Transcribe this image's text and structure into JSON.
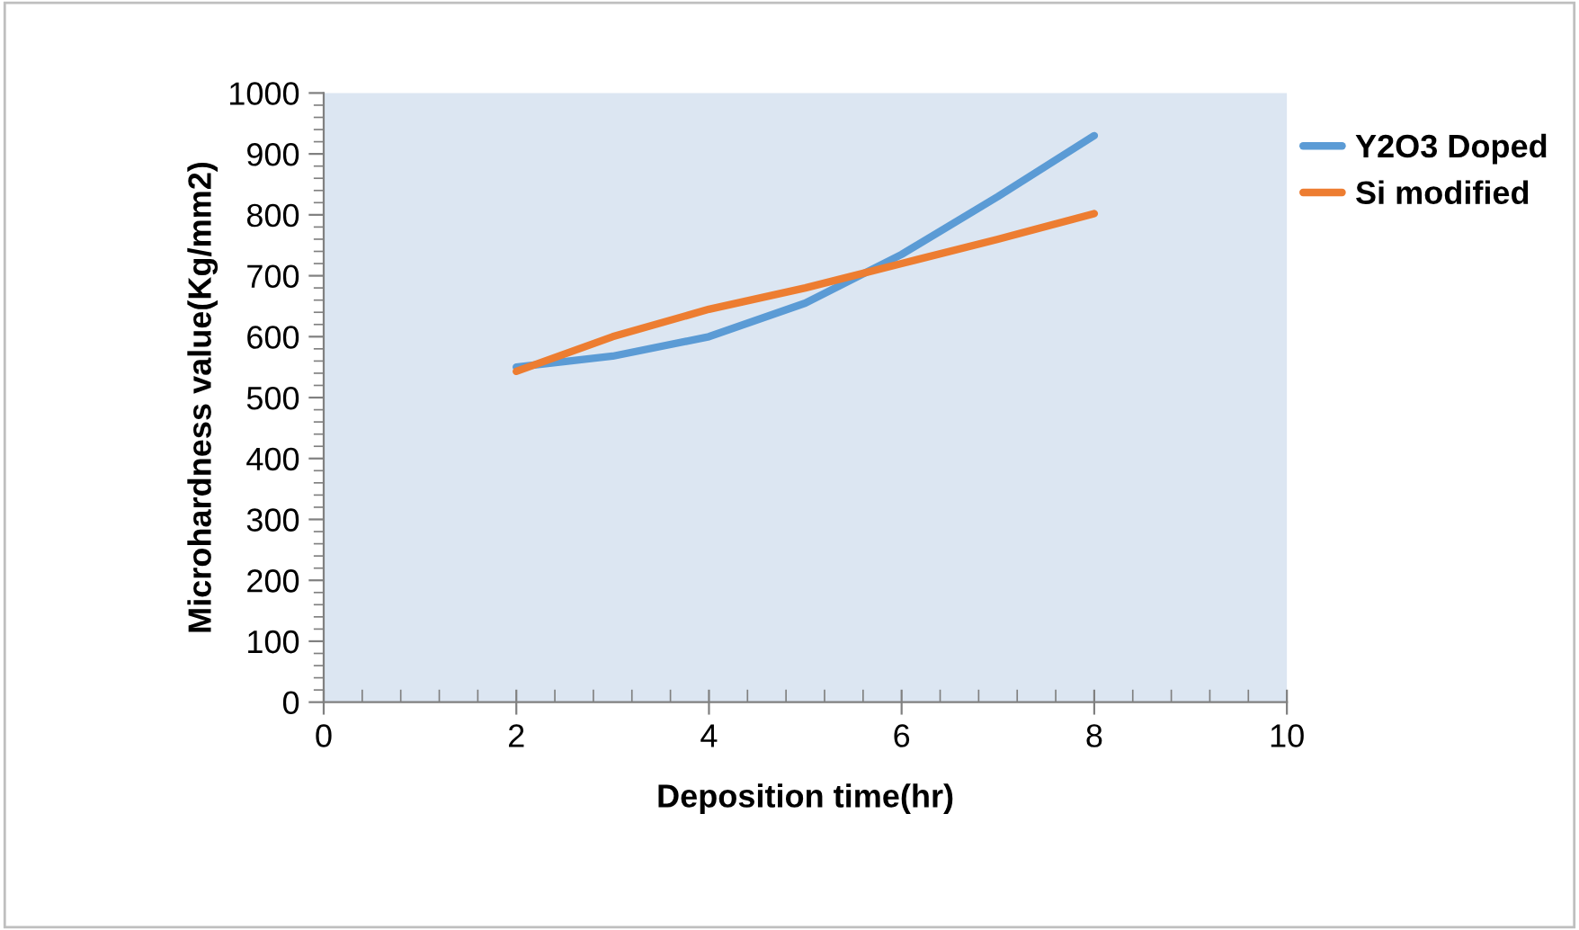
{
  "chart_data": {
    "type": "line",
    "xlabel": "Deposition time(hr)",
    "ylabel": "Microhardness value(Kg/mm2)",
    "x": [
      2,
      3,
      4,
      5,
      6,
      7,
      8
    ],
    "series": [
      {
        "name": "Y2O3 Doped",
        "color": "#5b9bd5",
        "values": [
          550,
          568,
          600,
          655,
          735,
          830,
          930
        ]
      },
      {
        "name": "Si modified",
        "color": "#ed7d31",
        "values": [
          543,
          600,
          645,
          680,
          720,
          760,
          802
        ]
      }
    ],
    "xlim": [
      0,
      10
    ],
    "xticks": [
      0,
      2,
      4,
      6,
      8,
      10
    ],
    "ylim": [
      0,
      1000
    ],
    "yticks": [
      0,
      100,
      200,
      300,
      400,
      500,
      600,
      700,
      800,
      900,
      1000
    ],
    "grid": false,
    "legend": "right",
    "marker": "none",
    "line_style": "solid"
  }
}
